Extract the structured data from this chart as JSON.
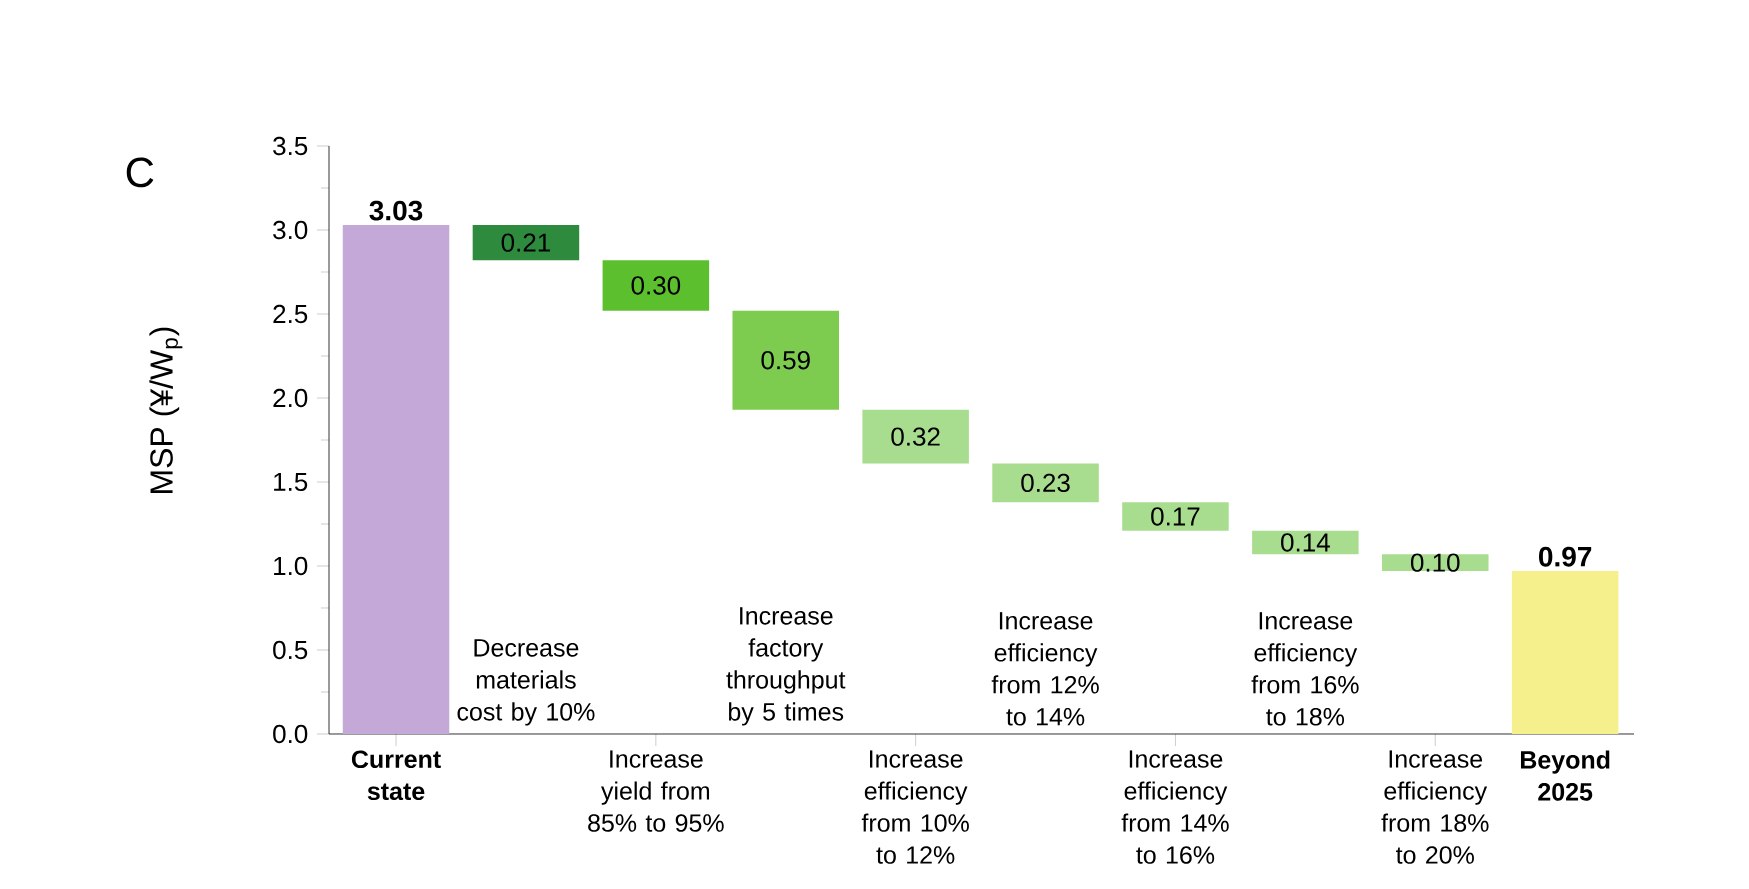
{
  "chart_data": {
    "type": "bar",
    "ylabel": "MSP (¥/W$_{p}$)",
    "annotations": [
      "C"
    ],
    "categories": [
      "Current state",
      "Decrease materials cost by 10%",
      "Increase yield from 85% to 95%",
      "Increase factory throughput by 5 times",
      "Increase efficiency from 10% to 12%",
      "Increase efficiency from 12% to 14%",
      "Increase efficiency from 14% to 16%",
      "Increase efficiency from 16% to 18%",
      "Increase efficiency from 18% to 20%",
      "Beyond 2025"
    ],
    "values": [
      3.03,
      -0.21,
      -0.3,
      -0.59,
      -0.32,
      -0.23,
      -0.17,
      -0.14,
      -0.1,
      0.97
    ],
    "base": [
      0,
      3.03,
      2.82,
      2.52,
      1.93,
      1.61,
      1.38,
      1.21,
      1.07,
      0
    ],
    "colors": [
      "#c3a8d8",
      "#2e8b3e",
      "#5cc02e",
      "#7dcc50",
      "#a8dd8f",
      "#a8dd8f",
      "#a8dd8f",
      "#a8dd8f",
      "#a8dd8f",
      "#f5f08c"
    ],
    "value_labels": [
      "3.03",
      "0.21",
      "0.30",
      "0.59",
      "0.32",
      "0.23",
      "0.17",
      "0.14",
      "0.10",
      "0.97"
    ],
    "ylim": [
      0,
      3.5
    ],
    "yticks": [
      {
        "value": 0,
        "label": "0.0"
      },
      {
        "value": 0.5,
        "label": "0.5"
      },
      {
        "value": 1,
        "label": "1.0"
      },
      {
        "value": 1.5,
        "label": "1.5"
      },
      {
        "value": 2,
        "label": "2.0"
      },
      {
        "value": 2.5,
        "label": "2.5"
      },
      {
        "value": 3,
        "label": "3.0"
      },
      {
        "value": 3.5,
        "label": "3.5"
      }
    ]
  }
}
